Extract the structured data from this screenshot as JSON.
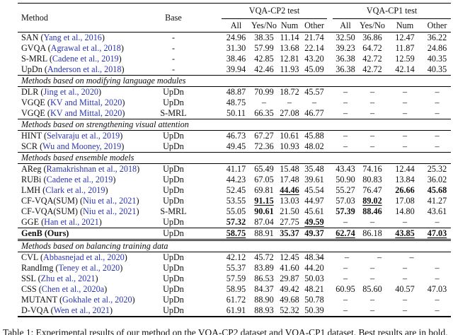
{
  "colors": {
    "background": "#ffffff",
    "text": "#111111",
    "citation_blue": "#2b35b2",
    "rule": "#000000"
  },
  "header": {
    "method": "Method",
    "base": "Base",
    "group_cp2": "VQA-CP2 test",
    "group_cp1": "VQA-CP1 test",
    "sub": [
      "All",
      "Yes/No",
      "Num",
      "Other"
    ]
  },
  "sections": [
    {
      "title": null,
      "rows": [
        {
          "method": "SAN",
          "cite": "Yang et al., 2016",
          "base": "-",
          "cells": [
            [
              "24.96"
            ],
            [
              "38.35"
            ],
            [
              "11.14"
            ],
            [
              "21.74"
            ],
            [
              "32.50"
            ],
            [
              "36.86"
            ],
            [
              "12.47"
            ],
            [
              "36.22"
            ]
          ]
        },
        {
          "method": "GVQA",
          "cite": "Agrawal et al., 2018",
          "base": "-",
          "cells": [
            [
              "31.30"
            ],
            [
              "57.99"
            ],
            [
              "13.68"
            ],
            [
              "22.14"
            ],
            [
              "39.23"
            ],
            [
              "64.72"
            ],
            [
              "11.87"
            ],
            [
              "24.86"
            ]
          ]
        },
        {
          "method": "S-MRL",
          "cite": "Cadene et al., 2019",
          "base": "-",
          "cells": [
            [
              "38.46"
            ],
            [
              "42.85"
            ],
            [
              "12.81"
            ],
            [
              "43.20"
            ],
            [
              "36.38"
            ],
            [
              "42.72"
            ],
            [
              "12.59"
            ],
            [
              "40.35"
            ]
          ]
        },
        {
          "method": "UpDn",
          "cite": "Anderson et al., 2018",
          "base": "-",
          "cells": [
            [
              "39.94"
            ],
            [
              "42.46"
            ],
            [
              "11.93"
            ],
            [
              "45.09"
            ],
            [
              "36.38"
            ],
            [
              "42.72"
            ],
            [
              "42.14"
            ],
            [
              "40.35"
            ]
          ]
        }
      ]
    },
    {
      "title": "Methods based on modifying language modules",
      "rows": [
        {
          "method": "DLR",
          "cite": "Jing et al., 2020",
          "base": "UpDn",
          "cells": [
            [
              "48.87"
            ],
            [
              "70.99"
            ],
            [
              "18.72"
            ],
            [
              "45.57"
            ],
            [
              "–"
            ],
            [
              "–"
            ],
            [
              "–"
            ],
            [
              "–"
            ]
          ]
        },
        {
          "method": "VGQE",
          "cite": "KV and Mittal, 2020",
          "base": "UpDn",
          "cells": [
            [
              "48.75"
            ],
            [
              "–"
            ],
            [
              "–"
            ],
            [
              "–"
            ],
            [
              "–"
            ],
            [
              "–"
            ],
            [
              "–"
            ],
            [
              "–"
            ]
          ]
        },
        {
          "method": "VGQE",
          "cite": "KV and Mittal, 2020",
          "base": "S-MRL",
          "cells": [
            [
              "50.11"
            ],
            [
              "66.35"
            ],
            [
              "27.08"
            ],
            [
              "46.77"
            ],
            [
              "–"
            ],
            [
              "–"
            ],
            [
              "–"
            ],
            [
              "–"
            ]
          ]
        }
      ]
    },
    {
      "title": "Methods based on strengthening visual attention",
      "rows": [
        {
          "method": "HINT",
          "cite": "Selvaraju et al., 2019",
          "base": "UpDn",
          "cells": [
            [
              "46.73"
            ],
            [
              "67.27"
            ],
            [
              "10.61"
            ],
            [
              "45.88"
            ],
            [
              "–"
            ],
            [
              "–"
            ],
            [
              "–"
            ],
            [
              "–"
            ]
          ]
        },
        {
          "method": "SCR",
          "cite": "Wu and Mooney, 2019",
          "base": "UpDn",
          "cells": [
            [
              "49.45"
            ],
            [
              "72.36"
            ],
            [
              "10.93"
            ],
            [
              "48.02"
            ],
            [
              "–"
            ],
            [
              "–"
            ],
            [
              "–"
            ],
            [
              "–"
            ]
          ]
        }
      ]
    },
    {
      "title": "Methods based ensemble models",
      "rows": [
        {
          "method": "AReg",
          "cite": "Ramakrishnan et al., 2018",
          "base": "UpDn",
          "cells": [
            [
              "41.17"
            ],
            [
              "65.49"
            ],
            [
              "15.48"
            ],
            [
              "35.48"
            ],
            [
              "43.43"
            ],
            [
              "74.16"
            ],
            [
              "12.44"
            ],
            [
              "25.32"
            ]
          ]
        },
        {
          "method": "RUBi",
          "cite": "Cadene et al., 2019",
          "base": "UpDn",
          "cells": [
            [
              "44.23"
            ],
            [
              "67.05"
            ],
            [
              "17.48"
            ],
            [
              "39.61"
            ],
            [
              "50.90"
            ],
            [
              "80.83"
            ],
            [
              "13.84"
            ],
            [
              "36.02"
            ]
          ]
        },
        {
          "method": "LMH",
          "cite": "Clark et al., 2019",
          "base": "UpDn",
          "cells": [
            [
              "52.45"
            ],
            [
              "69.81"
            ],
            [
              "44.46",
              "bu"
            ],
            [
              "45.54"
            ],
            [
              "55.27"
            ],
            [
              "76.47"
            ],
            [
              "26.66",
              "b"
            ],
            [
              "45.68",
              "b"
            ]
          ]
        },
        {
          "method": "CF-VQA(SUM)",
          "cite": "Niu et al., 2021",
          "base": "UpDn",
          "cells": [
            [
              "53.55"
            ],
            [
              "91.15",
              "bu"
            ],
            [
              "13.03"
            ],
            [
              "44.97"
            ],
            [
              "57.03"
            ],
            [
              "89.02",
              "bu"
            ],
            [
              "17.08"
            ],
            [
              "41.27"
            ]
          ]
        },
        {
          "method": "CF-VQA(SUM)",
          "cite": "Niu et al., 2021",
          "base": "S-MRL",
          "cells": [
            [
              "55.05"
            ],
            [
              "90.61",
              "b"
            ],
            [
              "21.50"
            ],
            [
              "45.61"
            ],
            [
              "57.39",
              "b"
            ],
            [
              "88.46",
              "b"
            ],
            [
              "14.80"
            ],
            [
              "43.61"
            ]
          ]
        },
        {
          "method": "GGE",
          "cite": "Han et al., 2021",
          "base": "UpDn",
          "cells": [
            [
              "57.32",
              "b"
            ],
            [
              "87.04"
            ],
            [
              "27.75"
            ],
            [
              "49.59",
              "bu"
            ],
            [
              "–"
            ],
            [
              "–"
            ],
            [
              "–"
            ],
            [
              "–"
            ]
          ]
        },
        {
          "method": "GenB (Ours)",
          "cite": null,
          "bold_method": true,
          "genb": true,
          "base": "UpDn",
          "cells": [
            [
              "58.75",
              "bu"
            ],
            [
              "88.91"
            ],
            [
              "35.37",
              "b"
            ],
            [
              "49.37",
              "b"
            ],
            [
              "62.74",
              "bu"
            ],
            [
              "86.18"
            ],
            [
              "43.85",
              "bu"
            ],
            [
              "47.03",
              "bu"
            ]
          ]
        }
      ]
    },
    {
      "title": "Methods based on balancing training data",
      "rows": [
        {
          "method": "CVL",
          "cite": "Abbasnejad et al., 2020",
          "base": "UpDn",
          "dash_shift": true,
          "cells": [
            [
              "42.12"
            ],
            [
              "45.72"
            ],
            [
              "12.45"
            ],
            [
              "48.34"
            ],
            [
              "–"
            ],
            [
              "–"
            ],
            [
              "–"
            ],
            [
              "–"
            ]
          ]
        },
        {
          "method": "RandImg",
          "cite": "Teney et al., 2020",
          "base": "UpDn",
          "cells": [
            [
              "55.37"
            ],
            [
              "83.89"
            ],
            [
              "41.60"
            ],
            [
              "44.20"
            ],
            [
              "–"
            ],
            [
              "–"
            ],
            [
              "–"
            ],
            [
              "–"
            ]
          ]
        },
        {
          "method": "SSL",
          "cite": "Zhu et al., 2021",
          "base": "UpDn",
          "cells": [
            [
              "57.59"
            ],
            [
              "86.53"
            ],
            [
              "29.87"
            ],
            [
              "50.03"
            ],
            [
              "–"
            ],
            [
              "–"
            ],
            [
              "–"
            ],
            [
              "–"
            ]
          ]
        },
        {
          "method": "CSS",
          "cite": "Chen et al., 2020a",
          "base": "UpDn",
          "cells": [
            [
              "58.95"
            ],
            [
              "84.37"
            ],
            [
              "49.42"
            ],
            [
              "48.21"
            ],
            [
              "60.95"
            ],
            [
              "85.60"
            ],
            [
              "40.57"
            ],
            [
              "47.03"
            ]
          ]
        },
        {
          "method": "MUTANT",
          "cite": "Gokhale et al., 2020",
          "base": "UpDn",
          "cells": [
            [
              "61.72"
            ],
            [
              "88.90"
            ],
            [
              "49.68"
            ],
            [
              "50.78"
            ],
            [
              "–"
            ],
            [
              "–"
            ],
            [
              "–"
            ],
            [
              "–"
            ]
          ]
        },
        {
          "method": "D-VQA",
          "cite": "Wen et al., 2021",
          "base": "UpDn",
          "cells": [
            [
              "61.91"
            ],
            [
              "88.93"
            ],
            [
              "52.32"
            ],
            [
              "50.39"
            ],
            [
              "–"
            ],
            [
              "–"
            ],
            [
              "–"
            ],
            [
              "–"
            ]
          ]
        }
      ]
    }
  ],
  "caption": "Table 1: Experimental results of our method on the VQA-CP2 dataset and VQA-CP1 dataset. Best results are in bold."
}
